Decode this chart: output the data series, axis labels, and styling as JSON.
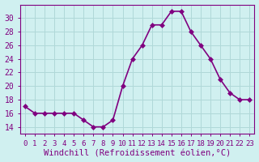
{
  "x": [
    0,
    1,
    2,
    3,
    4,
    5,
    6,
    7,
    8,
    9,
    10,
    11,
    12,
    13,
    14,
    15,
    16,
    17,
    18,
    19,
    20,
    21,
    22,
    23
  ],
  "y": [
    17,
    16,
    16,
    16,
    16,
    16,
    15,
    14,
    14,
    15,
    20,
    24,
    26,
    29,
    29,
    31,
    31,
    28,
    26,
    24,
    21,
    19,
    18,
    18
  ],
  "line_color": "#800080",
  "marker_color": "#800080",
  "bg_color": "#d0f0f0",
  "grid_color": "#b0d8d8",
  "xlabel": "Windchill (Refroidissement éolien,°C)",
  "xlim": [
    -0.5,
    23.5
  ],
  "ylim": [
    13,
    32
  ],
  "yticks": [
    14,
    16,
    18,
    20,
    22,
    24,
    26,
    28,
    30
  ],
  "xtick_labels": [
    "0",
    "1",
    "2",
    "3",
    "4",
    "5",
    "6",
    "7",
    "8",
    "9",
    "10",
    "11",
    "12",
    "13",
    "14",
    "15",
    "16",
    "17",
    "18",
    "19",
    "20",
    "21",
    "22",
    "23"
  ],
  "font_color": "#800080",
  "font_size": 7,
  "xlabel_fontsize": 7.5,
  "marker_size": 3,
  "line_width": 1.2
}
